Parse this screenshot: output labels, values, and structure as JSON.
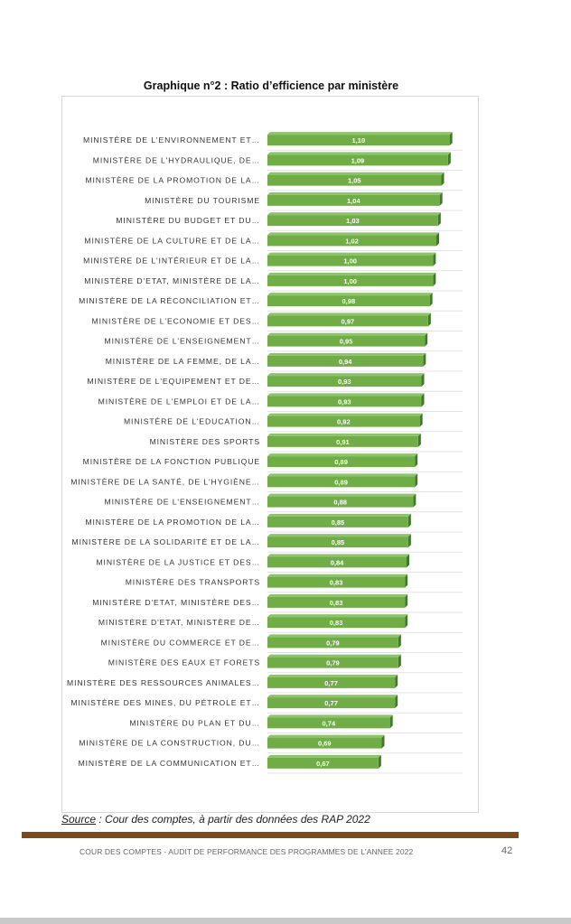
{
  "page": {
    "source_label": "Source",
    "source_text": " : Cour des comptes, à partir des données des RAP 2022",
    "footer": "COUR DES COMPTES - AUDIT DE PERFORMANCE DES PROGRAMMES DE L'ANNEE 2022",
    "page_number": "42"
  },
  "chart_data": {
    "type": "bar",
    "orientation": "horizontal",
    "title": "Graphique n°2 : Ratio d’efficience par ministère",
    "xlabel": "",
    "ylabel": "",
    "xlim": [
      0,
      1.2
    ],
    "grid": true,
    "legend": "none",
    "bar_color": "#70AD47",
    "categories": [
      "MINISTÈRE DE L'ENVIRONNEMENT ET…",
      "MINISTÈRE DE L'HYDRAULIQUE, DE…",
      "MINISTÈRE DE LA PROMOTION DE LA…",
      "MINISTÈRE DU TOURISME",
      "MINISTÈRE DU BUDGET ET DU…",
      "MINISTÈRE DE LA CULTURE ET DE LA…",
      "MINISTÈRE DE L'INTÉRIEUR ET DE LA…",
      "MINISTÈRE D'ETAT, MINISTÈRE DE LA…",
      "MINISTÈRE DE LA RÉCONCILIATION ET…",
      "MINISTÈRE DE L'ECONOMIE ET DES…",
      "MINISTÈRE DE L'ENSEIGNEMENT…",
      "MINISTÈRE DE LA FEMME, DE LA…",
      "MINISTÈRE DE L'EQUIPEMENT ET DE…",
      "MINISTÈRE DE L'EMPLOI ET DE LA…",
      "MINISTÈRE DE L'EDUCATION…",
      "MINISTÈRE DES SPORTS",
      "MINISTÈRE DE LA FONCTION PUBLIQUE",
      "MINISTÈRE DE LA SANTÉ, DE L'HYGIÈNE…",
      "MINISTÈRE DE L'ENSEIGNEMENT…",
      "MINISTÈRE DE LA PROMOTION DE LA…",
      "MINISTÈRE DE LA SOLIDARITÉ ET DE LA…",
      "MINISTÈRE DE LA JUSTICE ET DES…",
      "MINISTÈRE DES TRANSPORTS",
      "MINISTÈRE D'ETAT, MINISTÈRE DES…",
      "MINISTÈRE D'ETAT, MINISTÈRE DE…",
      "MINISTÈRE DU COMMERCE ET DE…",
      "MINISTÈRE DES EAUX ET FORETS",
      "MINISTÈRE DES RESSOURCES ANIMALES…",
      "MINISTÈRE DES MINES, DU PÉTROLE ET…",
      "MINISTÈRE DU PLAN ET DU…",
      "MINISTÈRE DE LA CONSTRUCTION, DU…",
      "MINISTÈRE DE LA COMMUNICATION ET…"
    ],
    "values": [
      1.1,
      1.09,
      1.05,
      1.04,
      1.03,
      1.02,
      1.0,
      1.0,
      0.98,
      0.97,
      0.95,
      0.94,
      0.93,
      0.93,
      0.92,
      0.91,
      0.89,
      0.89,
      0.88,
      0.85,
      0.85,
      0.84,
      0.83,
      0.83,
      0.83,
      0.79,
      0.79,
      0.77,
      0.77,
      0.74,
      0.69,
      0.67
    ],
    "value_labels": [
      "1,10",
      "1,09",
      "1,05",
      "1,04",
      "1,03",
      "1,02",
      "1,00",
      "1,00",
      "0,98",
      "0,97",
      "0,95",
      "0,94",
      "0,93",
      "0,93",
      "0,92",
      "0,91",
      "0,89",
      "0,89",
      "0,88",
      "0,85",
      "0,85",
      "0,84",
      "0,83",
      "0,83",
      "0,83",
      "0,79",
      "0,79",
      "0,77",
      "0,77",
      "0,74",
      "0,69",
      "0,67"
    ]
  }
}
